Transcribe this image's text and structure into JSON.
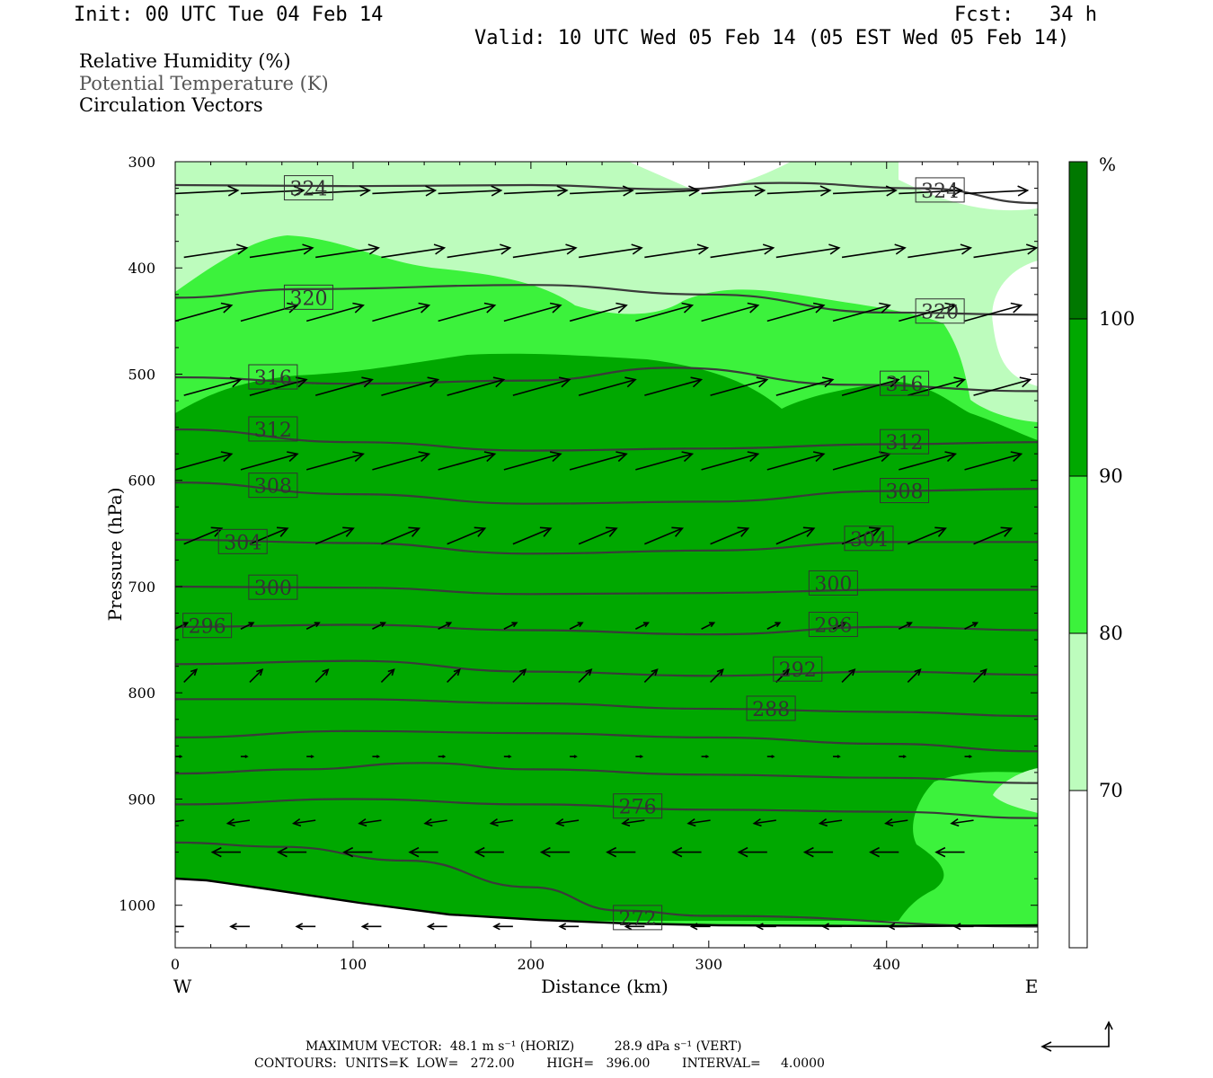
{
  "header": {
    "init": "Init: 00 UTC Tue 04 Feb 14",
    "fcst": "Fcst:   34 h",
    "valid": "Valid: 10 UTC Wed 05 Feb 14 (05 EST Wed 05 Feb 14)"
  },
  "fields": [
    "Relative Humidity (%)",
    "Potential Temperature (K)",
    "Circulation Vectors"
  ],
  "colors": {
    "rh_70_80": "#bdfcbd",
    "rh_80_90": "#3cf23c",
    "rh_90_100": "#00a800",
    "rh_100": "#007800",
    "contour": "#3a3a3a",
    "white": "#ffffff"
  },
  "chart_data": {
    "type": "cross-section",
    "xlabel": "Distance (km)",
    "ylabel": "Pressure (hPa)",
    "xlim": [
      0,
      485
    ],
    "ylim": [
      1040,
      300
    ],
    "x_ticks": [
      "0",
      "100",
      "200",
      "300",
      "400"
    ],
    "y_ticks": [
      "300",
      "400",
      "500",
      "600",
      "700",
      "800",
      "900",
      "1000"
    ],
    "west_label": "W",
    "east_label": "E",
    "colorbar": {
      "unit": "%",
      "levels": [
        "100",
        "90",
        "80",
        "70"
      ],
      "bins": [
        {
          "range": "<70",
          "color": "#ffffff"
        },
        {
          "range": "70-80",
          "color": "#bdfcbd"
        },
        {
          "range": "80-90",
          "color": "#3cf23c"
        },
        {
          "range": "90-100",
          "color": "#00a800"
        },
        {
          "range": ">100",
          "color": "#007800"
        }
      ]
    },
    "theta_contours": [
      {
        "value": 324,
        "label": "324",
        "points": [
          [
            0,
            322
          ],
          [
            100,
            323
          ],
          [
            200,
            322
          ],
          [
            280,
            326
          ],
          [
            340,
            320
          ],
          [
            420,
            325
          ],
          [
            485,
            339
          ]
        ]
      },
      {
        "value": 320,
        "label": "320",
        "points": [
          [
            0,
            428
          ],
          [
            70,
            420
          ],
          [
            200,
            416
          ],
          [
            300,
            425
          ],
          [
            400,
            442
          ],
          [
            485,
            444
          ]
        ]
      },
      {
        "value": 316,
        "label": "316",
        "points": [
          [
            0,
            503
          ],
          [
            100,
            509
          ],
          [
            200,
            506
          ],
          [
            280,
            494
          ],
          [
            380,
            510
          ],
          [
            485,
            516
          ]
        ]
      },
      {
        "value": 312,
        "label": "312",
        "points": [
          [
            0,
            552
          ],
          [
            100,
            564
          ],
          [
            200,
            572
          ],
          [
            300,
            570
          ],
          [
            400,
            566
          ],
          [
            485,
            564
          ]
        ]
      },
      {
        "value": 308,
        "label": "308",
        "points": [
          [
            0,
            602
          ],
          [
            100,
            613
          ],
          [
            200,
            622
          ],
          [
            300,
            620
          ],
          [
            400,
            610
          ],
          [
            485,
            608
          ]
        ]
      },
      {
        "value": 304,
        "label": "304",
        "points": [
          [
            0,
            656
          ],
          [
            100,
            659
          ],
          [
            200,
            669
          ],
          [
            300,
            666
          ],
          [
            400,
            658
          ],
          [
            485,
            658
          ]
        ]
      },
      {
        "value": 300,
        "label": "300",
        "points": [
          [
            0,
            700
          ],
          [
            100,
            701
          ],
          [
            200,
            707
          ],
          [
            300,
            706
          ],
          [
            400,
            703
          ],
          [
            485,
            703
          ]
        ]
      },
      {
        "value": 296,
        "label": "296",
        "points": [
          [
            0,
            738
          ],
          [
            100,
            736
          ],
          [
            200,
            741
          ],
          [
            300,
            745
          ],
          [
            400,
            738
          ],
          [
            485,
            741
          ]
        ]
      },
      {
        "value": 292,
        "label": "292",
        "points": [
          [
            0,
            773
          ],
          [
            100,
            770
          ],
          [
            200,
            780
          ],
          [
            300,
            784
          ],
          [
            400,
            780
          ],
          [
            485,
            783
          ]
        ]
      },
      {
        "value": 288,
        "label": "288",
        "points": [
          [
            0,
            806
          ],
          [
            100,
            806
          ],
          [
            200,
            810
          ],
          [
            300,
            815
          ],
          [
            400,
            818
          ],
          [
            485,
            822
          ]
        ]
      },
      {
        "value": 284,
        "label": "",
        "points": [
          [
            0,
            842
          ],
          [
            100,
            836
          ],
          [
            200,
            838
          ],
          [
            300,
            842
          ],
          [
            400,
            848
          ],
          [
            485,
            855
          ]
        ]
      },
      {
        "value": 280,
        "label": "",
        "points": [
          [
            0,
            876
          ],
          [
            70,
            872
          ],
          [
            140,
            866
          ],
          [
            200,
            872
          ],
          [
            300,
            877
          ],
          [
            400,
            880
          ],
          [
            485,
            885
          ]
        ]
      },
      {
        "value": 276,
        "label": "276",
        "points": [
          [
            0,
            905
          ],
          [
            100,
            900
          ],
          [
            200,
            905
          ],
          [
            300,
            910
          ],
          [
            400,
            912
          ],
          [
            485,
            918
          ]
        ]
      },
      {
        "value": 272,
        "label": "272",
        "points": [
          [
            0,
            941
          ],
          [
            60,
            945
          ],
          [
            130,
            958
          ],
          [
            200,
            983
          ],
          [
            250,
            1005
          ],
          [
            300,
            1010
          ],
          [
            485,
            1020
          ]
        ]
      }
    ],
    "label_positions_note": "",
    "vector_rows": [
      {
        "p": 330,
        "u": 1.0,
        "w": -0.05
      },
      {
        "p": 390,
        "u": 1.0,
        "w": -0.15
      },
      {
        "p": 450,
        "u": 0.9,
        "w": -0.25
      },
      {
        "p": 520,
        "u": 0.9,
        "w": -0.25
      },
      {
        "p": 590,
        "u": 0.9,
        "w": -0.25
      },
      {
        "p": 660,
        "u": 0.6,
        "w": -0.25
      },
      {
        "p": 740,
        "u": 0.2,
        "w": -0.1
      },
      {
        "p": 790,
        "u": 0.2,
        "w": -0.2
      },
      {
        "p": 860,
        "u": 0.1,
        "w": 0.0
      },
      {
        "p": 920,
        "u": -0.35,
        "w": 0.05
      },
      {
        "p": 950,
        "u": -0.45,
        "w": 0.0
      },
      {
        "p": 1020,
        "u": -0.3,
        "w": 0.0
      }
    ],
    "footer": {
      "max_vector": "MAXIMUM VECTOR:  48.1 m s⁻¹ (HORIZ)          28.9 dPa s⁻¹ (VERT)",
      "contours": "CONTOURS:  UNITS=K  LOW=   272.00        HIGH=   396.00        INTERVAL=     4.0000"
    }
  }
}
